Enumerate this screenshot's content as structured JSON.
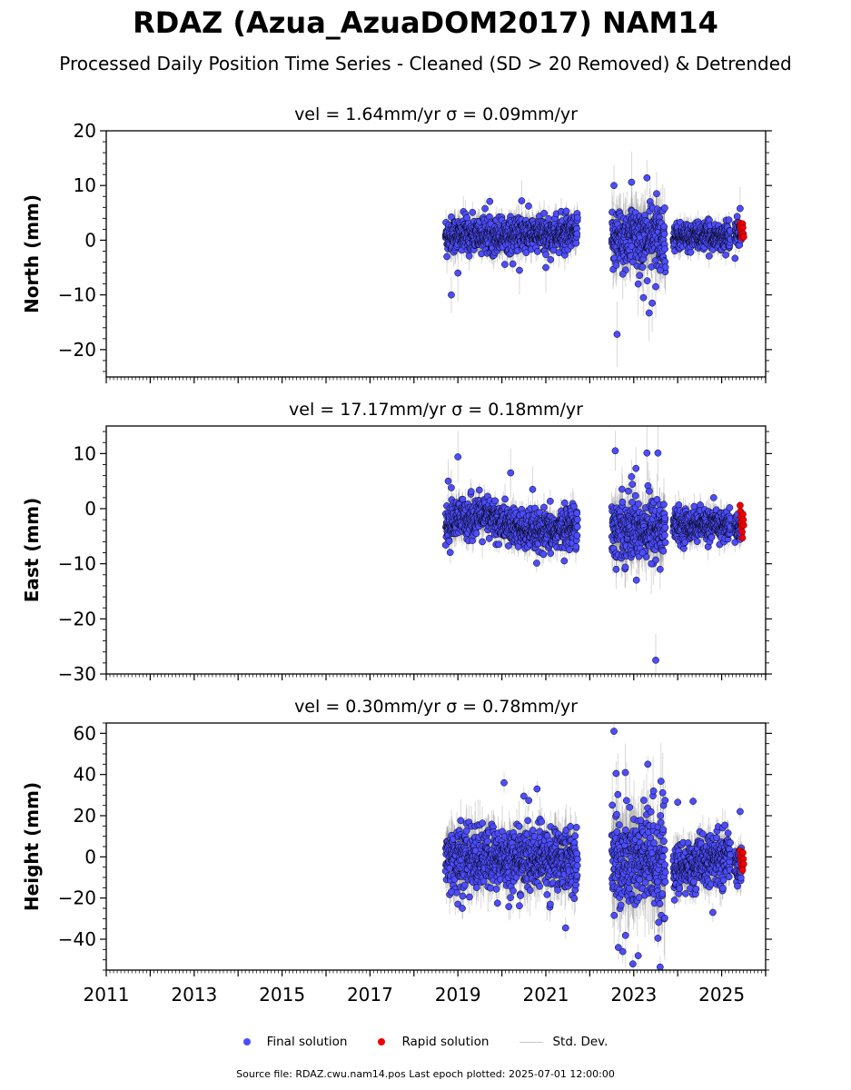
{
  "title": "RDAZ (Azua_AzuaDOM2017) NAM14",
  "subtitle": "Processed Daily Position Time Series - Cleaned (SD > 20 Removed) & Detrended",
  "legend": {
    "final": "Final solution",
    "rapid": "Rapid solution",
    "stddev": "Std. Dev."
  },
  "footer": "Source file: RDAZ.cwu.nam14.pos  Last epoch plotted: 2025-07-01 12:00:00",
  "colors": {
    "final": "#4d4dff",
    "rapid": "#ee0000",
    "stddev": "#c8c8c8",
    "edge": "#000000"
  },
  "chart_data": {
    "type": "scatter",
    "x_axis": {
      "range": [
        2011,
        2026
      ],
      "ticks": [
        2011,
        2013,
        2015,
        2017,
        2019,
        2021,
        2023,
        2025
      ],
      "minor_step": 0.0833
    },
    "panels": [
      {
        "id": "north",
        "title": "vel = 1.64mm/yr   σ = 0.09mm/yr",
        "ylabel": "North (mm)",
        "ylim": [
          -25,
          20
        ],
        "yticks": [
          -20,
          -10,
          0,
          10,
          20
        ],
        "yticklabels": [
          "−20",
          "−10",
          "0",
          "10",
          "20"
        ],
        "yminor": 2,
        "final_segments": [
          {
            "start": 2018.72,
            "end": 2021.72,
            "center": 1.0,
            "spread": 1.6,
            "err": 2.2
          },
          {
            "start": 2022.5,
            "end": 2023.72,
            "center": 0.5,
            "spread": 2.8,
            "err": 4.0
          },
          {
            "start": 2023.9,
            "end": 2025.2,
            "center": 0.7,
            "spread": 1.2,
            "err": 1.8
          },
          {
            "start": 2025.3,
            "end": 2025.45,
            "center": 1.2,
            "spread": 1.2,
            "err": 1.5
          }
        ],
        "final_outliers": [
          [
            2018.85,
            -10.0
          ],
          [
            2019.0,
            -6.0
          ],
          [
            2018.75,
            -3.0
          ],
          [
            2020.45,
            7.2
          ],
          [
            2020.4,
            -5.5
          ],
          [
            2021.0,
            -5.0
          ],
          [
            2022.55,
            10.0
          ],
          [
            2022.62,
            -17.2
          ],
          [
            2022.95,
            10.6
          ],
          [
            2023.3,
            11.4
          ],
          [
            2023.52,
            8.5
          ],
          [
            2023.22,
            -10.5
          ],
          [
            2023.42,
            -11.5
          ],
          [
            2023.35,
            -13.3
          ],
          [
            2023.5,
            -8.5
          ],
          [
            2023.1,
            -8.0
          ],
          [
            2023.6,
            -5.5
          ],
          [
            2022.75,
            -6.2
          ],
          [
            2025.42,
            5.8
          ]
        ],
        "rapid": {
          "start": 2025.42,
          "end": 2025.5,
          "values": [
            3.1,
            2.6,
            2.1,
            1.5,
            1.0,
            0.4,
            3.0,
            2.3,
            1.2,
            0.6
          ]
        }
      },
      {
        "id": "east",
        "title": "vel = 17.17mm/yr   σ = 0.18mm/yr",
        "ylabel": "East (mm)",
        "ylim": [
          -30,
          15
        ],
        "yticks": [
          -30,
          -20,
          -10,
          0,
          10
        ],
        "yticklabels": [
          "−30",
          "−20",
          "−10",
          "0",
          "10"
        ],
        "yminor": 2,
        "final_segments": [
          {
            "start": 2018.72,
            "end": 2021.72,
            "center": -3.0,
            "spread": 1.8,
            "err": 2.2,
            "wave": 1.5
          },
          {
            "start": 2022.5,
            "end": 2023.72,
            "center": -3.5,
            "spread": 2.8,
            "err": 4.0
          },
          {
            "start": 2023.9,
            "end": 2025.2,
            "center": -3.0,
            "spread": 1.4,
            "err": 2.0
          },
          {
            "start": 2025.3,
            "end": 2025.45,
            "center": -3.5,
            "spread": 1.2,
            "err": 1.5
          }
        ],
        "final_outliers": [
          [
            2018.78,
            5.0
          ],
          [
            2018.85,
            3.8
          ],
          [
            2019.0,
            9.4
          ],
          [
            2020.2,
            6.5
          ],
          [
            2020.7,
            3.5
          ],
          [
            2022.58,
            10.5
          ],
          [
            2022.95,
            5.8
          ],
          [
            2023.05,
            7.3
          ],
          [
            2023.3,
            10.1
          ],
          [
            2023.55,
            10.1
          ],
          [
            2023.5,
            -27.5
          ],
          [
            2022.6,
            -11.0
          ],
          [
            2023.6,
            -11.0
          ],
          [
            2023.4,
            -10.0
          ],
          [
            2023.2,
            -8.0
          ]
        ],
        "rapid": {
          "start": 2025.42,
          "end": 2025.5,
          "values": [
            0.6,
            -0.5,
            -1.5,
            -2.5,
            -3.3,
            -4.2,
            -5.3,
            -1.0,
            -2.0,
            -3.0
          ]
        }
      },
      {
        "id": "height",
        "title": "vel = 0.30mm/yr   σ = 0.78mm/yr",
        "ylabel": "Height (mm)",
        "ylim": [
          -55,
          65
        ],
        "yticks": [
          -40,
          -20,
          0,
          20,
          40,
          60
        ],
        "yticklabels": [
          "−40",
          "−20",
          "0",
          "20",
          "40",
          "60"
        ],
        "yminor": 5,
        "final_segments": [
          {
            "start": 2018.72,
            "end": 2021.72,
            "center": -1.0,
            "spread": 7.5,
            "err": 10.0
          },
          {
            "start": 2022.5,
            "end": 2023.72,
            "center": -2.0,
            "spread": 13.0,
            "err": 16.0
          },
          {
            "start": 2023.9,
            "end": 2025.2,
            "center": -3.0,
            "spread": 6.0,
            "err": 8.0,
            "trend": 8.0
          },
          {
            "start": 2025.3,
            "end": 2025.45,
            "center": -3.0,
            "spread": 5.0,
            "err": 6.0
          }
        ],
        "final_outliers": [
          [
            2018.85,
            -17.0
          ],
          [
            2019.0,
            -23.0
          ],
          [
            2019.1,
            -25.0
          ],
          [
            2019.9,
            -22.5
          ],
          [
            2020.05,
            36.0
          ],
          [
            2020.5,
            29.5
          ],
          [
            2020.8,
            33.0
          ],
          [
            2021.45,
            -34.5
          ],
          [
            2021.1,
            -23.0
          ],
          [
            2022.55,
            61.0
          ],
          [
            2022.6,
            40.5
          ],
          [
            2022.65,
            -44.0
          ],
          [
            2022.75,
            -46.0
          ],
          [
            2022.98,
            -52.0
          ],
          [
            2023.1,
            -48.0
          ],
          [
            2023.32,
            45.0
          ],
          [
            2023.6,
            -53.5
          ],
          [
            2023.55,
            -39.5
          ],
          [
            2023.45,
            32.0
          ],
          [
            2024.0,
            26.5
          ],
          [
            2024.35,
            27.0
          ],
          [
            2024.8,
            -27.0
          ],
          [
            2025.42,
            22.0
          ]
        ],
        "rapid": {
          "start": 2025.42,
          "end": 2025.5,
          "values": [
            3.0,
            1.0,
            -0.5,
            -2.0,
            -4.0,
            -5.5,
            -6.5,
            2.0,
            -1.0,
            -3.5
          ]
        }
      }
    ]
  }
}
